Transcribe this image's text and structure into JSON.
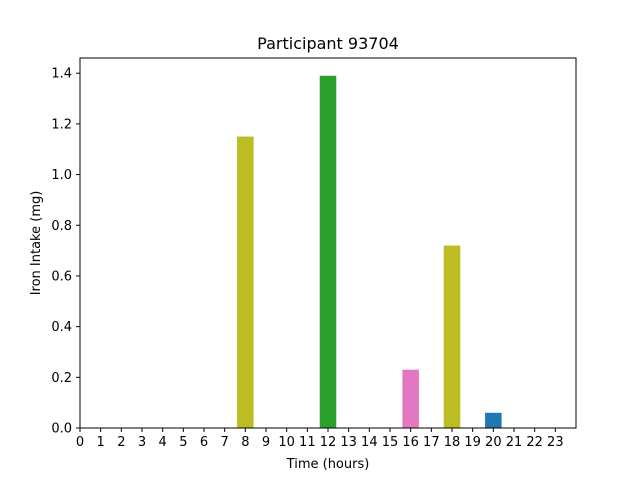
{
  "chart_data": {
    "type": "bar",
    "title": "Participant 93704",
    "xlabel": "Time (hours)",
    "ylabel": "Iron Intake (mg)",
    "x_ticks": [
      "0",
      "1",
      "2",
      "3",
      "4",
      "5",
      "6",
      "7",
      "8",
      "9",
      "10",
      "11",
      "12",
      "13",
      "14",
      "15",
      "16",
      "17",
      "18",
      "19",
      "20",
      "21",
      "22",
      "23"
    ],
    "y_ticks": [
      "0.0",
      "0.2",
      "0.4",
      "0.6",
      "0.8",
      "1.0",
      "1.2",
      "1.4"
    ],
    "xlim": [
      0,
      24
    ],
    "ylim": [
      0,
      1.46
    ],
    "grid": false,
    "bars": [
      {
        "x": 8,
        "value": 1.15,
        "color": "#bcbd22"
      },
      {
        "x": 12,
        "value": 1.39,
        "color": "#2ca02c"
      },
      {
        "x": 16,
        "value": 0.23,
        "color": "#e377c2"
      },
      {
        "x": 18,
        "value": 0.72,
        "color": "#bcbd22"
      },
      {
        "x": 20,
        "value": 0.06,
        "color": "#1f77b4"
      }
    ]
  }
}
